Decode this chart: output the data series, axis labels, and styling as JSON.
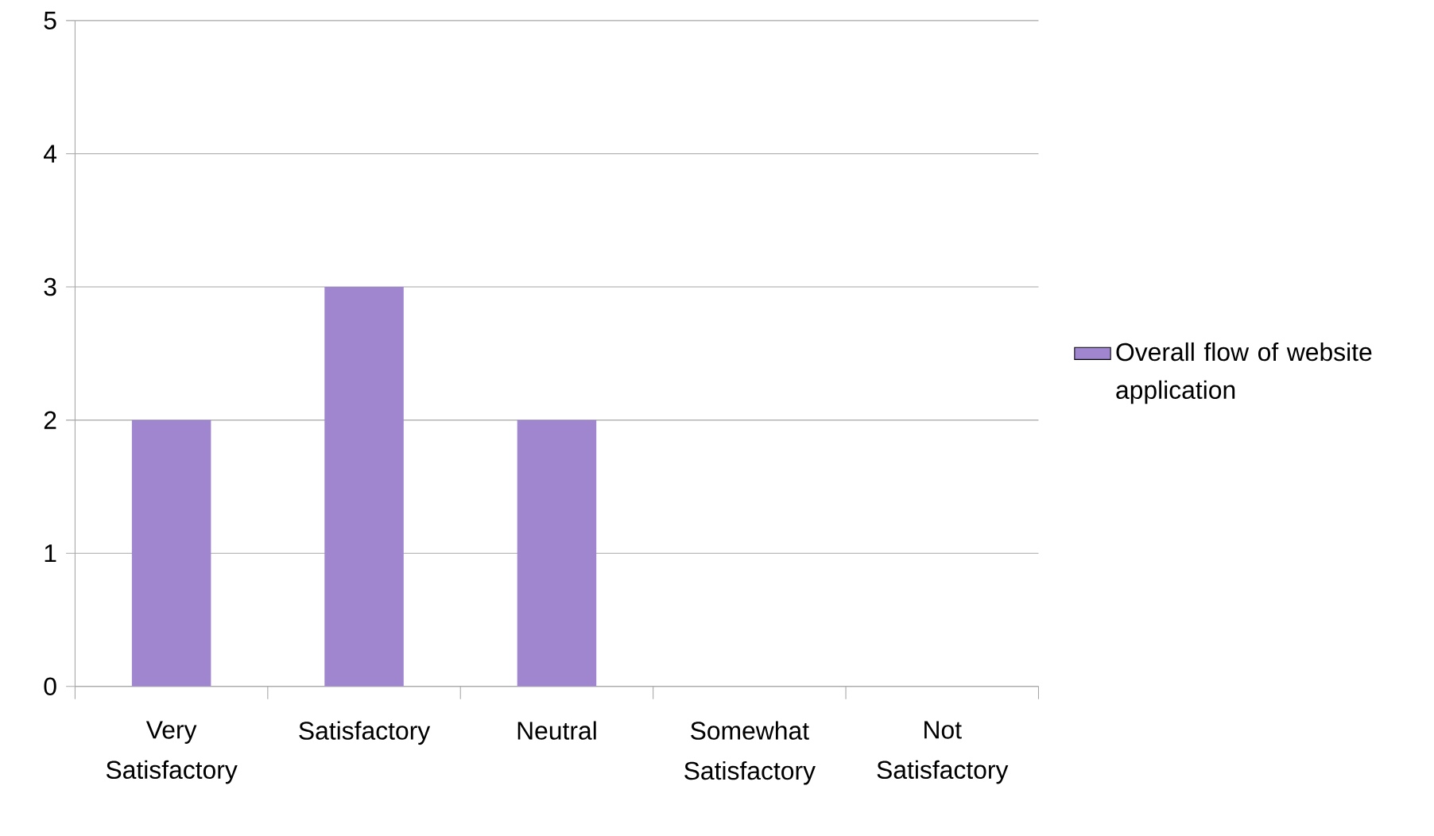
{
  "chart_data": {
    "type": "bar",
    "categories": [
      "Very Satisfactory",
      "Satisfactory",
      "Neutral",
      "Somewhat Satisfactory",
      "Not Satisfactory"
    ],
    "series": [
      {
        "name": "Overall flow of website application",
        "color": "#9f86cf",
        "values": [
          2,
          3,
          2,
          0,
          0
        ]
      }
    ],
    "ylim": [
      0,
      5
    ],
    "yticks": [
      0,
      1,
      2,
      3,
      4,
      5
    ],
    "grid": "y",
    "legend": "right"
  }
}
